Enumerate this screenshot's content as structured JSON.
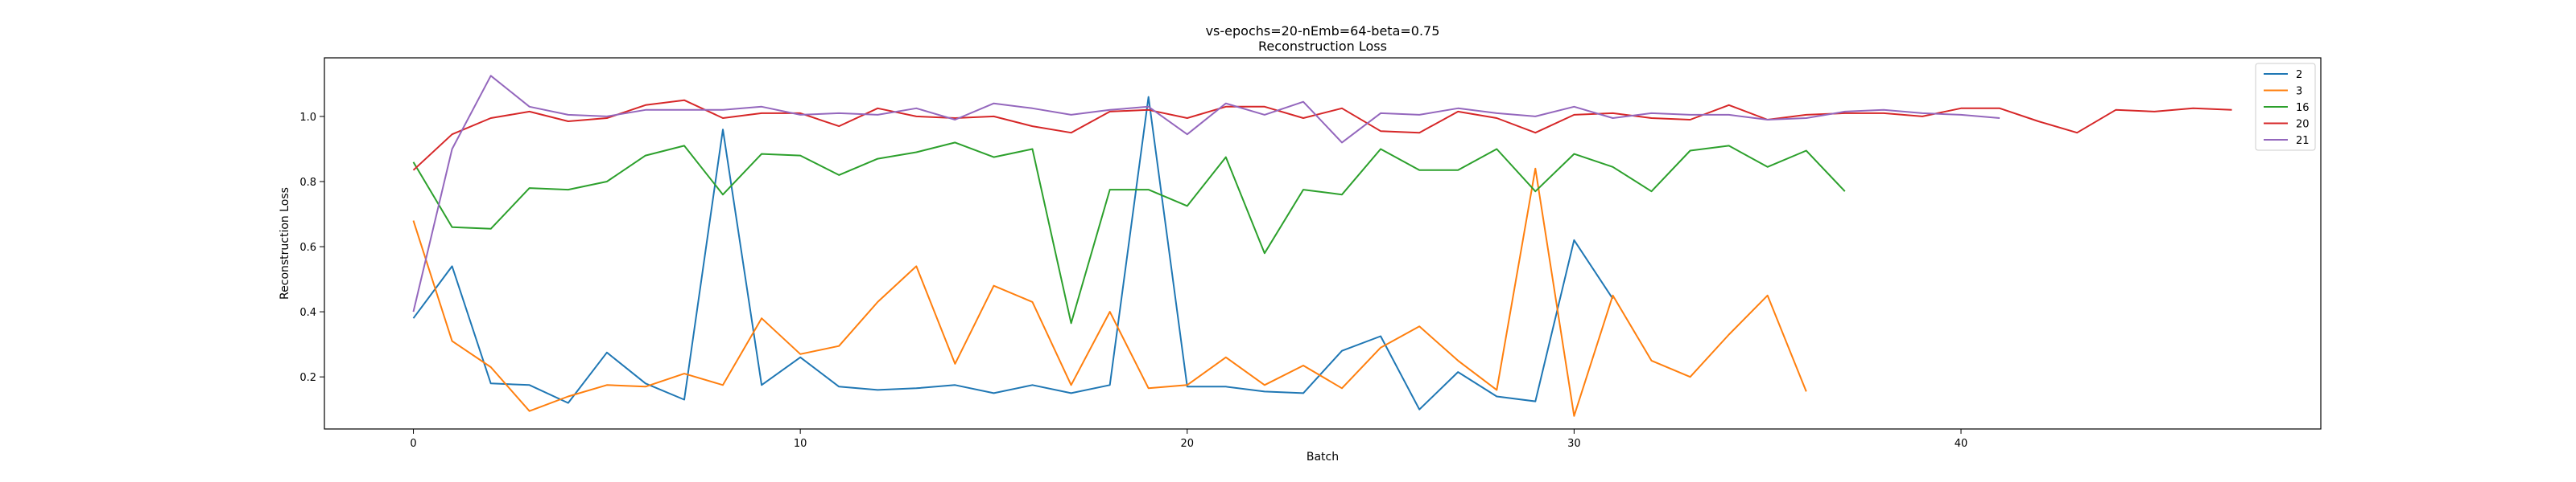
{
  "chart_data": {
    "type": "line",
    "title": "vs-epochs=20-nEmb=64-beta=0.75",
    "subtitle": "Reconstruction Loss",
    "xlabel": "Batch",
    "ylabel": "Reconstruction Loss",
    "xlim": [
      -2.3,
      49.3
    ],
    "ylim": [
      0.04,
      1.18
    ],
    "xticks": [
      0,
      10,
      20,
      30,
      40
    ],
    "yticks": [
      0.2,
      0.4,
      0.6,
      0.8,
      1.0
    ],
    "ytick_labels": [
      "0.2",
      "0.4",
      "0.6",
      "0.8",
      "1.0"
    ],
    "grid": false,
    "legend_position": "top-right",
    "series": [
      {
        "name": "2",
        "color": "#1f77b4",
        "values": [
          0.38,
          0.54,
          0.18,
          0.175,
          0.12,
          0.275,
          0.18,
          0.13,
          0.96,
          0.175,
          0.26,
          0.17,
          0.16,
          0.165,
          0.175,
          0.15,
          0.175,
          0.15,
          0.175,
          1.06,
          0.17,
          0.17,
          0.155,
          0.15,
          0.28,
          0.325,
          0.1,
          0.215,
          0.14,
          0.125,
          0.62,
          0.44
        ]
      },
      {
        "name": "3",
        "color": "#ff7f0e",
        "values": [
          0.68,
          0.31,
          0.23,
          0.095,
          0.14,
          0.175,
          0.17,
          0.21,
          0.175,
          0.38,
          0.27,
          0.295,
          0.43,
          0.54,
          0.24,
          0.48,
          0.43,
          0.175,
          0.4,
          0.165,
          0.175,
          0.26,
          0.175,
          0.235,
          0.165,
          0.29,
          0.355,
          0.25,
          0.16,
          0.84,
          0.08,
          0.45,
          0.25,
          0.2,
          0.33,
          0.45,
          0.155
        ]
      },
      {
        "name": "16",
        "color": "#2ca02c",
        "values": [
          0.86,
          0.66,
          0.655,
          0.78,
          0.775,
          0.8,
          0.88,
          0.91,
          0.76,
          0.885,
          0.88,
          0.82,
          0.87,
          0.89,
          0.92,
          0.875,
          0.9,
          0.365,
          0.775,
          0.775,
          0.725,
          0.875,
          0.58,
          0.775,
          0.76,
          0.9,
          0.835,
          0.835,
          0.9,
          0.77,
          0.885,
          0.845,
          0.77,
          0.895,
          0.91,
          0.845,
          0.895,
          0.77
        ]
      },
      {
        "name": "20",
        "color": "#d62728",
        "values": [
          0.835,
          0.945,
          0.995,
          1.015,
          0.985,
          0.995,
          1.035,
          1.05,
          0.995,
          1.01,
          1.01,
          0.97,
          1.025,
          1.0,
          0.995,
          1.0,
          0.97,
          0.95,
          1.015,
          1.02,
          0.995,
          1.03,
          1.03,
          0.995,
          1.025,
          0.955,
          0.95,
          1.015,
          0.995,
          0.95,
          1.005,
          1.01,
          0.995,
          0.99,
          1.035,
          0.99,
          1.005,
          1.01,
          1.01,
          1.0,
          1.025,
          1.025,
          0.985,
          0.95,
          1.02,
          1.015,
          1.025,
          1.02
        ]
      },
      {
        "name": "21",
        "color": "#9467bd",
        "values": [
          0.4,
          0.9,
          1.125,
          1.03,
          1.005,
          1.0,
          1.02,
          1.02,
          1.02,
          1.03,
          1.005,
          1.01,
          1.005,
          1.025,
          0.99,
          1.04,
          1.025,
          1.005,
          1.02,
          1.03,
          0.945,
          1.04,
          1.005,
          1.045,
          0.92,
          1.01,
          1.005,
          1.025,
          1.01,
          1.0,
          1.03,
          0.995,
          1.01,
          1.005,
          1.005,
          0.99,
          0.995,
          1.015,
          1.02,
          1.01,
          1.005,
          0.995
        ]
      }
    ]
  }
}
